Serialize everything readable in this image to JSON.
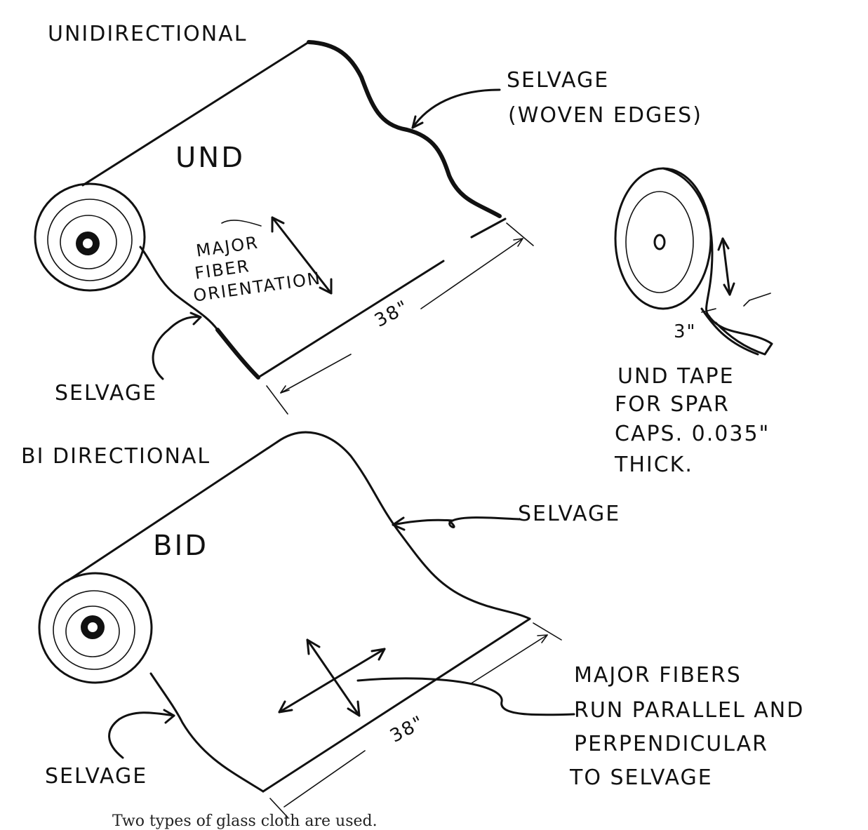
{
  "diagram": {
    "unidirectional": {
      "heading": "UNIDIRECTIONAL",
      "roll_label": "UND",
      "fiber_label_lines": [
        "MAJOR",
        "FIBER",
        "ORIENTATION"
      ],
      "width_label": "38\"",
      "selvage_top": "SELVAGE",
      "selvage_top_note": "(WOVEN EDGES)",
      "selvage_bottom": "SELVAGE"
    },
    "tape": {
      "width_label": "3\"",
      "caption_lines": [
        "UND TAPE",
        "FOR SPAR",
        "CAPS. 0.035\"",
        "THICK."
      ]
    },
    "bidirectional": {
      "heading": "BI DIRECTIONAL",
      "roll_label": "BID",
      "width_label": "38\"",
      "selvage_right": "SELVAGE",
      "selvage_bottom": "SELVAGE",
      "fibers_note_lines": [
        "MAJOR FIBERS",
        "RUN PARALLEL AND",
        "PERPENDICULAR",
        "TO SELVAGE"
      ]
    },
    "caption": "Two types of glass cloth are used."
  }
}
